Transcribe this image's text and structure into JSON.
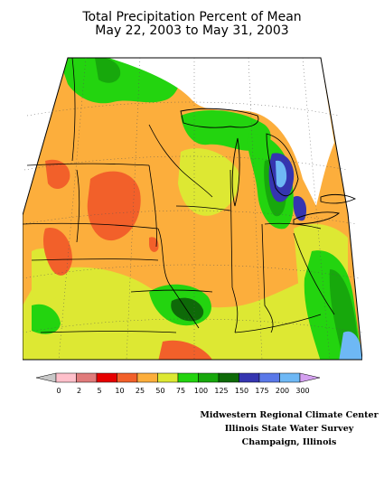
{
  "title": {
    "line1": "Total Precipitation Percent of Mean",
    "line2": "May 22, 2003 to May 31, 2003"
  },
  "legend": {
    "bins": [
      {
        "label": "0",
        "color": "#ffc0cb"
      },
      {
        "label": "2",
        "color": "#e07b7b"
      },
      {
        "label": "5",
        "color": "#e60000"
      },
      {
        "label": "10",
        "color": "#f2602a"
      },
      {
        "label": "25",
        "color": "#fcae3c"
      },
      {
        "label": "50",
        "color": "#dde833"
      },
      {
        "label": "75",
        "color": "#23d40f"
      },
      {
        "label": "100",
        "color": "#17a80c"
      },
      {
        "label": "125",
        "color": "#0e6a08"
      },
      {
        "label": "150",
        "color": "#3535b0"
      },
      {
        "label": "175",
        "color": "#5a78e8"
      },
      {
        "label": "200",
        "color": "#6eb8f5"
      },
      {
        "label": "300",
        "color": "#d4a0f0"
      }
    ],
    "under_color": "#c8c8c8",
    "over_color": "#d4a0f0"
  },
  "credits": [
    "Midwestern Regional Climate Center",
    "Illinois State Water Survey",
    "Champaign, Illinois"
  ],
  "colors": {
    "orange": "#fcae3c",
    "red_orange": "#f2602a",
    "yellow_green": "#dde833",
    "green": "#23d40f",
    "mid_green": "#17a80c",
    "dark_green": "#0e6a08",
    "blue": "#3535b0",
    "light_blue": "#6eb8f5"
  }
}
